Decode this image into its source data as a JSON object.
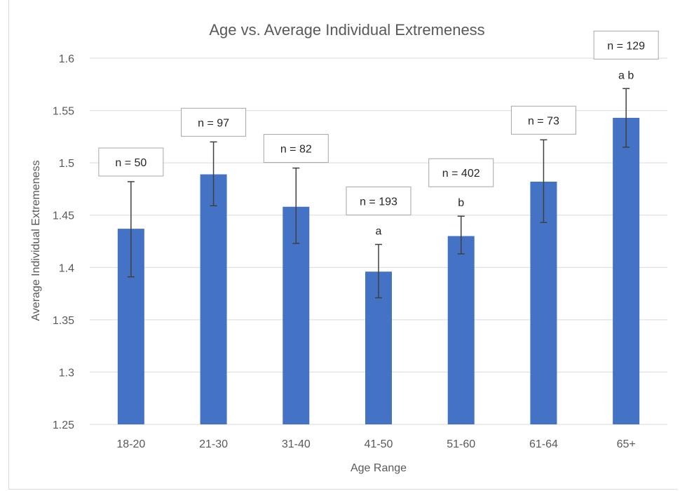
{
  "chart_data": {
    "type": "bar",
    "title": "Age vs. Average Individual Extremeness",
    "xlabel": "Age Range",
    "ylabel": "Average Individual Extremeness",
    "categories": [
      "18-20",
      "21-30",
      "31-40",
      "41-50",
      "51-60",
      "61-64",
      "65+"
    ],
    "values": [
      1.437,
      1.489,
      1.458,
      1.396,
      1.43,
      1.482,
      1.543
    ],
    "error_low": [
      1.391,
      1.459,
      1.423,
      1.371,
      1.413,
      1.443,
      1.515
    ],
    "error_high": [
      1.482,
      1.52,
      1.495,
      1.422,
      1.449,
      1.522,
      1.571
    ],
    "n_labels": [
      "n = 50",
      "n = 97",
      "n = 82",
      "n = 193",
      "n = 402",
      "n = 73",
      "n = 129"
    ],
    "significance_labels": [
      "",
      "",
      "",
      "a",
      "b",
      "",
      "a b"
    ],
    "ylim": [
      1.25,
      1.6
    ],
    "yticks": [
      "1.25",
      "1.3",
      "1.35",
      "1.4",
      "1.45",
      "1.5",
      "1.55",
      "1.6"
    ],
    "grid": true,
    "bar_color": "#4472c4",
    "grid_color": "#d9d9d9",
    "error_bar_color": "#404040"
  }
}
